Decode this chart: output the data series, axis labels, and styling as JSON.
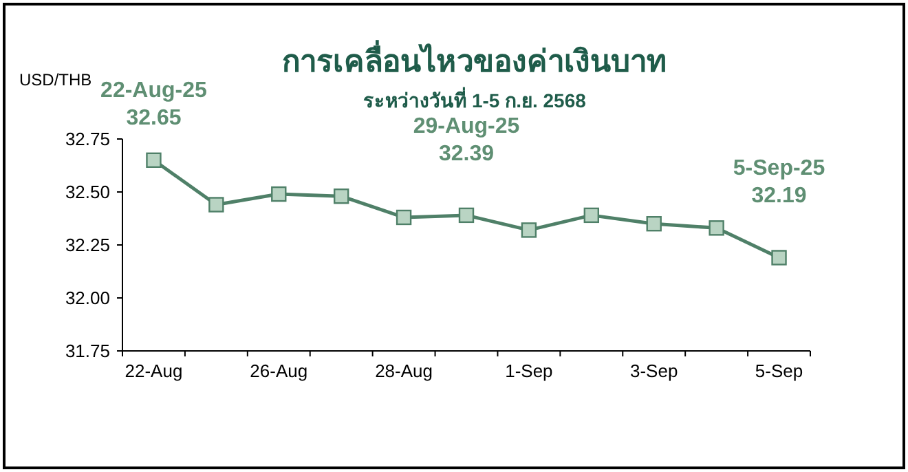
{
  "chart_data": {
    "type": "line",
    "title": "การเคลื่อนไหวของค่าเงินบาท",
    "subtitle": "ระหว่างวันที่ 1-5 ก.ย. 2568",
    "ylabel": "USD/THB",
    "categories": [
      "22-Aug",
      null,
      "26-Aug",
      null,
      "28-Aug",
      null,
      "1-Sep",
      null,
      "3-Sep",
      null,
      "5-Sep"
    ],
    "series": [
      {
        "color": "#4f8068",
        "values": [
          32.65,
          32.44,
          32.49,
          32.48,
          32.38,
          32.39,
          32.32,
          32.39,
          32.35,
          32.33,
          32.19
        ]
      }
    ],
    "value_labels": [
      "32.65",
      null,
      null,
      null,
      null,
      "32.39",
      null,
      null,
      null,
      null,
      "32.19"
    ],
    "annotations": [
      "22-Aug-25",
      "29-Aug-25",
      "5-Sep-25"
    ],
    "ylim": [
      31.75,
      32.75
    ],
    "yticks": [
      31.75,
      {
        "value": 32,
        "label": "32.00"
      },
      32.25,
      {
        "value": 32.5,
        "label": "32.50"
      },
      32.75
    ],
    "marker": "square"
  }
}
